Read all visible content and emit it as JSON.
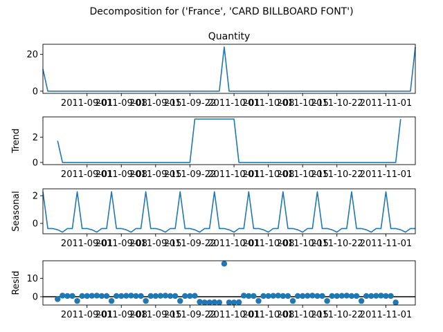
{
  "chart_data": {
    "type": "line",
    "suptitle": "Decomposition for ('France', 'CARD BILLBOARD FONT')",
    "x": [
      "2011-08-23",
      "2011-08-24",
      "2011-08-25",
      "2011-08-26",
      "2011-08-27",
      "2011-08-28",
      "2011-08-29",
      "2011-08-30",
      "2011-08-31",
      "2011-09-01",
      "2011-09-02",
      "2011-09-03",
      "2011-09-04",
      "2011-09-05",
      "2011-09-06",
      "2011-09-07",
      "2011-09-08",
      "2011-09-09",
      "2011-09-10",
      "2011-09-11",
      "2011-09-12",
      "2011-09-13",
      "2011-09-14",
      "2011-09-15",
      "2011-09-16",
      "2011-09-17",
      "2011-09-18",
      "2011-09-19",
      "2011-09-20",
      "2011-09-21",
      "2011-09-22",
      "2011-09-23",
      "2011-09-24",
      "2011-09-25",
      "2011-09-26",
      "2011-09-27",
      "2011-09-28",
      "2011-09-29",
      "2011-09-30",
      "2011-10-01",
      "2011-10-02",
      "2011-10-03",
      "2011-10-04",
      "2011-10-05",
      "2011-10-06",
      "2011-10-07",
      "2011-10-08",
      "2011-10-09",
      "2011-10-10",
      "2011-10-11",
      "2011-10-12",
      "2011-10-13",
      "2011-10-14",
      "2011-10-15",
      "2011-10-16",
      "2011-10-17",
      "2011-10-18",
      "2011-10-19",
      "2011-10-20",
      "2011-10-21",
      "2011-10-22",
      "2011-10-23",
      "2011-10-24",
      "2011-10-25",
      "2011-10-26",
      "2011-10-27",
      "2011-10-28",
      "2011-10-29",
      "2011-10-30",
      "2011-10-31",
      "2011-11-01",
      "2011-11-02",
      "2011-11-03",
      "2011-11-04",
      "2011-11-05",
      "2011-11-06",
      "2011-11-07"
    ],
    "xticks": [
      "2011-09-01",
      "2011-09-08",
      "2011-09-15",
      "2011-09-22",
      "2011-10-01",
      "2011-10-08",
      "2011-10-15",
      "2011-10-22",
      "2011-11-01"
    ],
    "panels": [
      {
        "title": "Quantity",
        "ylabel": "",
        "kind": "line",
        "ylim": [
          -1.2,
          25.5
        ],
        "yticks": [
          0,
          20
        ],
        "values": [
          12,
          0,
          0,
          0,
          0,
          0,
          0,
          0,
          0,
          0,
          0,
          0,
          0,
          0,
          0,
          0,
          0,
          0,
          0,
          0,
          0,
          0,
          0,
          0,
          0,
          0,
          0,
          0,
          0,
          0,
          0,
          0,
          0,
          0,
          0,
          0,
          0,
          24,
          0,
          0,
          0,
          0,
          0,
          0,
          0,
          0,
          0,
          0,
          0,
          0,
          0,
          0,
          0,
          0,
          0,
          0,
          0,
          0,
          0,
          0,
          0,
          0,
          0,
          0,
          0,
          0,
          0,
          0,
          0,
          0,
          0,
          0,
          0,
          0,
          0,
          0,
          24
        ]
      },
      {
        "title": "",
        "ylabel": "Trend",
        "kind": "line",
        "ylim": [
          -0.17,
          3.6
        ],
        "yticks": [
          0,
          2
        ],
        "values": [
          null,
          null,
          null,
          1.714,
          0,
          0,
          0,
          0,
          0,
          0,
          0,
          0,
          0,
          0,
          0,
          0,
          0,
          0,
          0,
          0,
          0,
          0,
          0,
          0,
          0,
          0,
          0,
          0,
          0,
          0,
          0,
          3.429,
          3.429,
          3.429,
          3.429,
          3.429,
          3.429,
          3.429,
          3.429,
          3.429,
          0,
          0,
          0,
          0,
          0,
          0,
          0,
          0,
          0,
          0,
          0,
          0,
          0,
          0,
          0,
          0,
          0,
          0,
          0,
          0,
          0,
          0,
          0,
          0,
          0,
          0,
          0,
          0,
          0,
          0,
          0,
          0,
          0,
          3.429,
          null,
          null,
          null
        ]
      },
      {
        "title": "",
        "ylabel": "Seasonal",
        "kind": "line",
        "ylim": [
          -0.75,
          2.5
        ],
        "yticks": [
          0,
          2
        ],
        "values": [
          2.29,
          -0.37,
          -0.37,
          -0.46,
          -0.63,
          -0.37,
          -0.37,
          2.29,
          -0.37,
          -0.37,
          -0.46,
          -0.63,
          -0.37,
          -0.37,
          2.29,
          -0.37,
          -0.37,
          -0.46,
          -0.63,
          -0.37,
          -0.37,
          2.29,
          -0.37,
          -0.37,
          -0.46,
          -0.63,
          -0.37,
          -0.37,
          2.29,
          -0.37,
          -0.37,
          -0.46,
          -0.63,
          -0.37,
          -0.37,
          2.29,
          -0.37,
          -0.37,
          -0.46,
          -0.63,
          -0.37,
          -0.37,
          2.29,
          -0.37,
          -0.37,
          -0.46,
          -0.63,
          -0.37,
          -0.37,
          2.29,
          -0.37,
          -0.37,
          -0.46,
          -0.63,
          -0.37,
          -0.37,
          2.29,
          -0.37,
          -0.37,
          -0.46,
          -0.63,
          -0.37,
          -0.37,
          2.29,
          -0.37,
          -0.37,
          -0.46,
          -0.63,
          -0.37,
          -0.37,
          2.29,
          -0.37,
          -0.37,
          -0.46,
          -0.63,
          -0.37,
          -0.37
        ]
      },
      {
        "title": "",
        "ylabel": "Resid",
        "kind": "scatter",
        "ylim": [
          -4.5,
          19.5
        ],
        "yticks": [
          0,
          10
        ],
        "baseline": 0,
        "values": [
          null,
          null,
          null,
          -1.3,
          0.6,
          0.4,
          0.4,
          -2.3,
          0.4,
          0.4,
          0.5,
          0.6,
          0.4,
          0.4,
          -2.3,
          0.4,
          0.4,
          0.5,
          0.6,
          0.4,
          0.4,
          -2.3,
          0.4,
          0.4,
          0.5,
          0.6,
          0.4,
          0.4,
          -2.3,
          0.4,
          0.4,
          0.5,
          -2.8,
          -3.1,
          -3.1,
          -3.0,
          -3.1,
          17.9,
          -3.1,
          -3.1,
          -3.0,
          0.6,
          0.4,
          0.4,
          -2.3,
          0.4,
          0.4,
          0.5,
          0.6,
          0.4,
          0.4,
          -2.3,
          0.4,
          0.4,
          0.5,
          0.6,
          0.4,
          0.4,
          -2.3,
          0.4,
          0.4,
          0.5,
          0.6,
          0.4,
          0.4,
          -2.3,
          0.4,
          0.4,
          0.5,
          0.6,
          0.4,
          0.4,
          -3.1,
          null,
          null,
          null,
          null
        ]
      }
    ],
    "colors": {
      "line": "#1f77b4",
      "marker": "#1f77b4",
      "axis": "#000000",
      "baseline": "#000000"
    },
    "grid": false
  }
}
